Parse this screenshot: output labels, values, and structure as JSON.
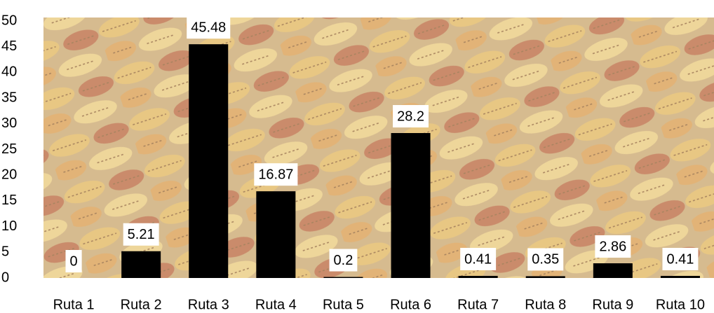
{
  "chart_data": {
    "type": "bar",
    "categories": [
      "Ruta 1",
      "Ruta 2",
      "Ruta 3",
      "Ruta 4",
      "Ruta 5",
      "Ruta 6",
      "Ruta 7",
      "Ruta 8",
      "Ruta 9",
      "Ruta 10"
    ],
    "values": [
      0,
      5.21,
      45.48,
      16.87,
      0.2,
      28.2,
      0.41,
      0.35,
      2.86,
      0.41
    ],
    "color": "#000000",
    "ylim": [
      0,
      50
    ],
    "yticks": [
      0,
      5,
      10,
      15,
      20,
      25,
      30,
      35,
      40,
      45,
      50
    ],
    "grid": false
  }
}
